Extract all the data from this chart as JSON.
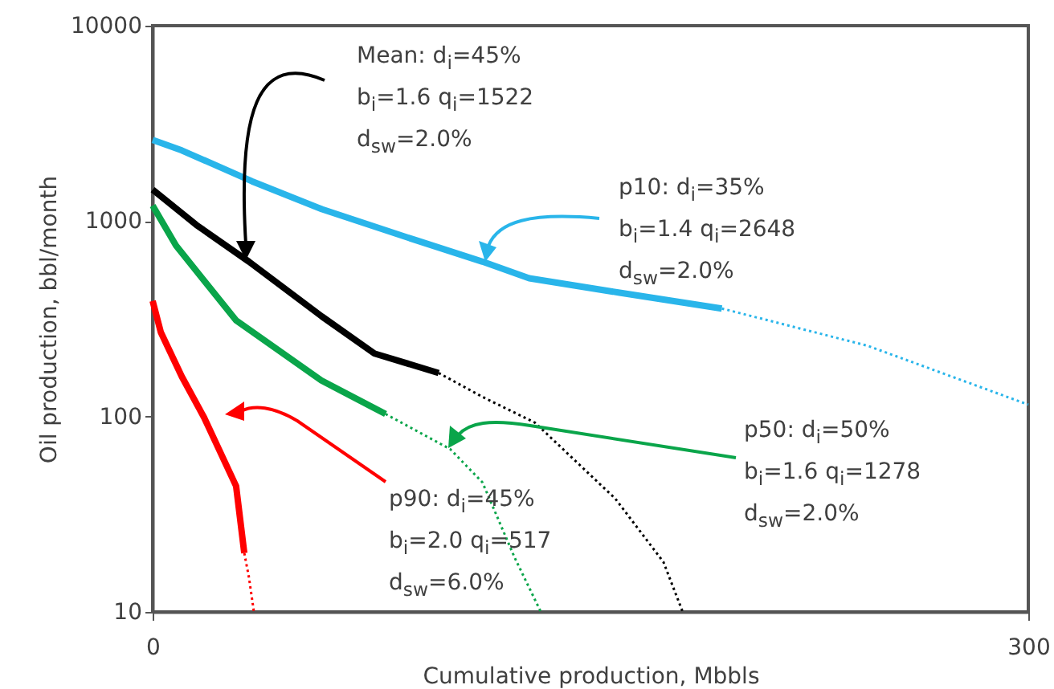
{
  "chart_data": {
    "type": "line",
    "xlabel": "Cumulative production, Mbbls",
    "ylabel": "Oil production, bbl/month",
    "log": "y",
    "xlim": [
      0,
      300
    ],
    "xticks": [
      0,
      300
    ],
    "ylim": [
      10,
      10000
    ],
    "yticks": [
      10,
      100,
      1000,
      10000
    ],
    "grid": false,
    "series": [
      {
        "color": "#29b5ea",
        "line_style": "solid",
        "x": [
          0,
          10,
          34,
          58,
          90,
          113,
          129,
          160,
          195
        ],
        "values": [
          2600,
          2300,
          1600,
          1150,
          800,
          620,
          510,
          430,
          357
        ]
      },
      {
        "color": "#29b5ea",
        "line_style": "dotted",
        "x": [
          195,
          245,
          300
        ],
        "values": [
          357,
          230,
          115
        ]
      },
      {
        "color": "#000000",
        "line_style": "solid",
        "x": [
          0,
          15,
          33,
          58,
          76,
          98
        ],
        "values": [
          1450,
          955,
          620,
          325,
          210,
          167
        ]
      },
      {
        "color": "#000000",
        "line_style": "dotted",
        "x": [
          98,
          113,
          131,
          158.5,
          175,
          181.6
        ],
        "values": [
          167,
          126,
          93,
          38,
          18,
          10
        ]
      },
      {
        "color": "#0aa54a",
        "line_style": "solid",
        "x": [
          0,
          8,
          28.6,
          57.8,
          79.8
        ],
        "values": [
          1200,
          750,
          310,
          153,
          103
        ]
      },
      {
        "color": "#0aa54a",
        "line_style": "dotted",
        "x": [
          79.8,
          102,
          113,
          124,
          133
        ],
        "values": [
          103,
          68,
          46,
          19,
          10
        ]
      },
      {
        "color": "#ff0000",
        "line_style": "solid",
        "x": [
          0,
          2.8,
          10,
          17.6,
          28.6,
          31.4
        ],
        "values": [
          390,
          270,
          160,
          99,
          44,
          20
        ]
      },
      {
        "color": "#ff0000",
        "line_style": "dotted",
        "x": [
          31.4,
          33,
          34.7
        ],
        "values": [
          20,
          15,
          10
        ]
      }
    ],
    "annotations": [
      "Mean:  d$_{i}$=45%\nb$_{i}$=1.6 q$_{i}$=1522\nd$_{sw}$=2.0%",
      "p10:  d$_{i}$=35%\nb$_{i}$=1.4 q$_{i}$=2648\nd$_{sw}$=2.0%",
      "p50:  d$_{i}$=50%\nb$_{i}$=1.6 q$_{i}$=1278\nd$_{sw}$=2.0%",
      "p90:  d$_{i}$=45%\nb$_{i}$=2.0 q$_{i}$=517\nd$_{sw}$=6.0%"
    ]
  }
}
